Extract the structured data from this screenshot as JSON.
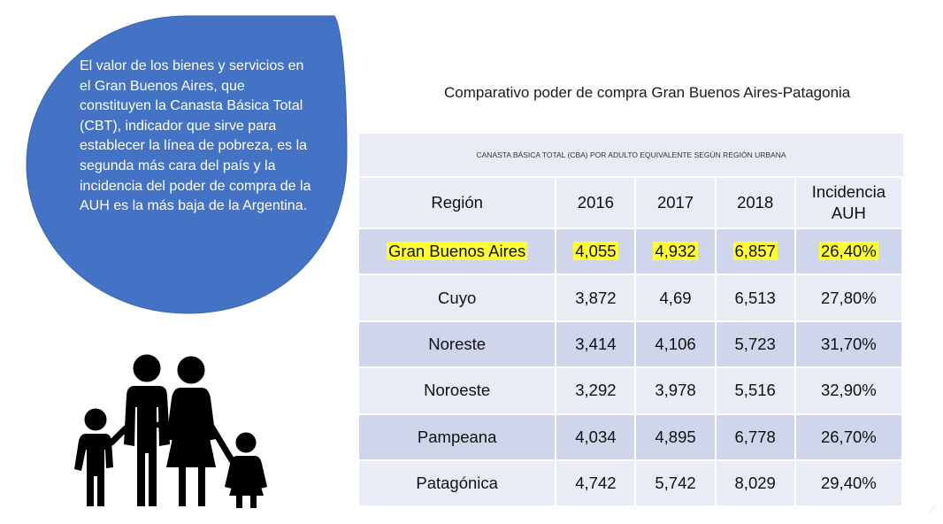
{
  "callout": {
    "text": "El valor de los bienes y servicios en el Gran Buenos Aires, que constituyen la Canasta Básica Total (CBT), indicador que sirve para establecer la línea de pobreza, es la segunda más cara del país y la incidencia del poder de compra de la AUH es la más baja de la Argentina.",
    "fill_color": "#4472c4"
  },
  "icon": "family-icon",
  "title": "Comparativo poder de compra Gran Buenos Aires-Patagonia",
  "table": {
    "caption": "CANASTA BÁSICA TOTAL (CBA) POR ADULTO EQUIVALENTE SEGÚN REGIÓN URBANA",
    "headers": [
      "Región",
      "2016",
      "2017",
      "2018",
      "Incidencia AUH"
    ],
    "highlight_color": "#ffff33",
    "rows": [
      {
        "region": "Gran Buenos Aires",
        "v2016": "4,055",
        "v2017": "4,932",
        "v2018": "6,857",
        "incidencia": "26,40%",
        "highlighted": true
      },
      {
        "region": "Cuyo",
        "v2016": "3,872",
        "v2017": "4,69",
        "v2018": "6,513",
        "incidencia": "27,80%"
      },
      {
        "region": "Noreste",
        "v2016": "3,414",
        "v2017": "4,106",
        "v2018": "5,723",
        "incidencia": "31,70%"
      },
      {
        "region": "Noroeste",
        "v2016": "3,292",
        "v2017": "3,978",
        "v2018": "5,516",
        "incidencia": "32,90%"
      },
      {
        "region": "Pampeana",
        "v2016": "4,034",
        "v2017": "4,895",
        "v2018": "6,778",
        "incidencia": "26,70%"
      },
      {
        "region": "Patagónica",
        "v2016": "4,742",
        "v2017": "5,742",
        "v2018": "8,029",
        "incidencia": "29,40%"
      }
    ]
  }
}
